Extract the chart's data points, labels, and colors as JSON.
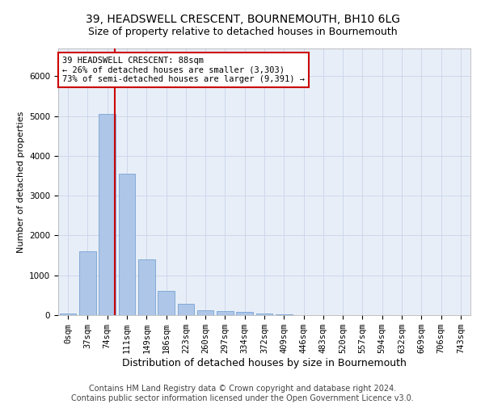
{
  "title1": "39, HEADSWELL CRESCENT, BOURNEMOUTH, BH10 6LG",
  "title2": "Size of property relative to detached houses in Bournemouth",
  "xlabel": "Distribution of detached houses by size in Bournemouth",
  "ylabel": "Number of detached properties",
  "categories": [
    "0sqm",
    "37sqm",
    "74sqm",
    "111sqm",
    "149sqm",
    "186sqm",
    "223sqm",
    "260sqm",
    "297sqm",
    "334sqm",
    "372sqm",
    "409sqm",
    "446sqm",
    "483sqm",
    "520sqm",
    "557sqm",
    "594sqm",
    "632sqm",
    "669sqm",
    "706sqm",
    "743sqm"
  ],
  "values": [
    50,
    1600,
    5050,
    3550,
    1400,
    600,
    280,
    130,
    100,
    80,
    50,
    30,
    5,
    0,
    0,
    0,
    0,
    0,
    0,
    0,
    0
  ],
  "bar_color": "#aec6e8",
  "bar_edge_color": "#6699cc",
  "annotation_text": "39 HEADSWELL CRESCENT: 88sqm\n← 26% of detached houses are smaller (3,303)\n73% of semi-detached houses are larger (9,391) →",
  "annotation_box_color": "#ffffff",
  "annotation_box_edge": "#cc0000",
  "red_line_color": "#cc0000",
  "grid_color": "#c8d4e8",
  "background_color": "#e8eef8",
  "footer1": "Contains HM Land Registry data © Crown copyright and database right 2024.",
  "footer2": "Contains public sector information licensed under the Open Government Licence v3.0.",
  "ylim": [
    0,
    6700
  ],
  "title1_fontsize": 10,
  "title2_fontsize": 9,
  "xlabel_fontsize": 9,
  "ylabel_fontsize": 8,
  "tick_fontsize": 7.5,
  "annotation_fontsize": 7.5,
  "footer_fontsize": 7
}
